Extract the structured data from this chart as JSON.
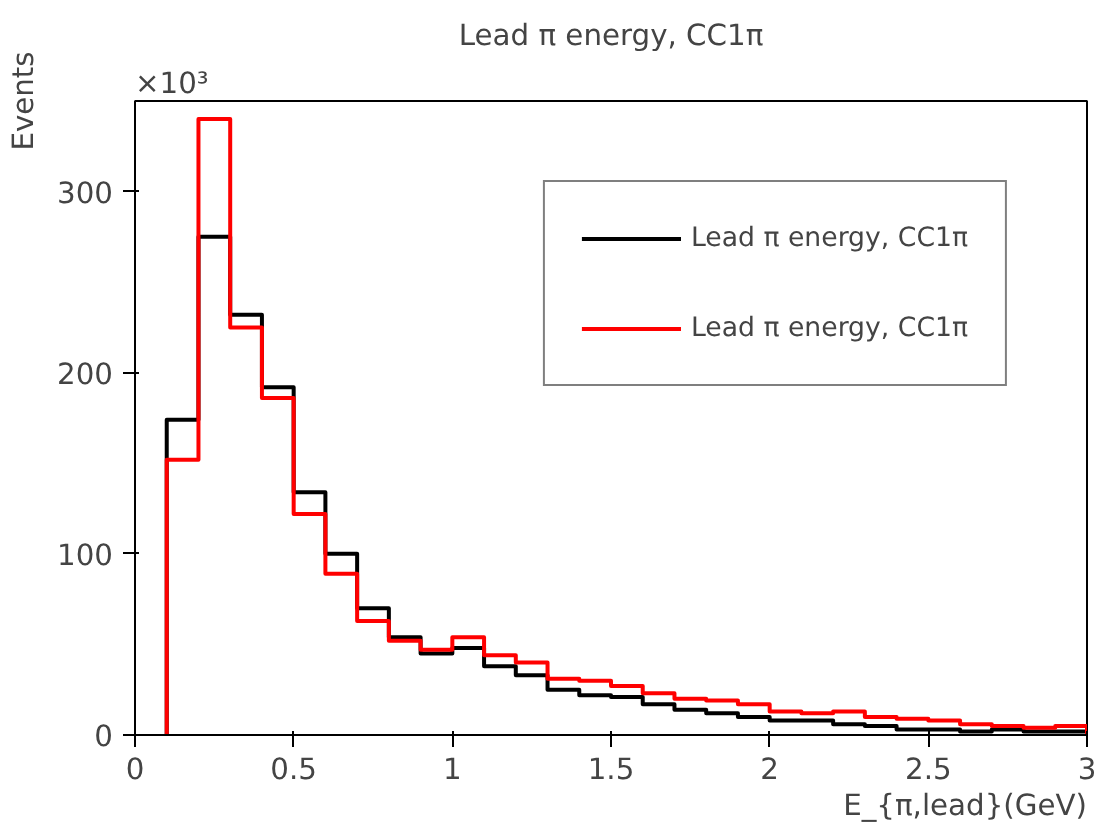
{
  "chart_data": {
    "type": "histogram",
    "title": "Lead π energy, CC1π",
    "xlabel": "E_{π,lead}(GeV)",
    "ylabel": "Events",
    "annotations": [
      "×10³"
    ],
    "bins": [
      0.1,
      0.2,
      0.3,
      0.4,
      0.5,
      0.6,
      0.7,
      0.8,
      0.9,
      1.0,
      1.1,
      1.2,
      1.3,
      1.4,
      1.5,
      1.6,
      1.7,
      1.8,
      1.9,
      2.0,
      2.1,
      2.2,
      2.3,
      2.4,
      2.5,
      2.6,
      2.7,
      2.8,
      2.9,
      3.0
    ],
    "series": [
      {
        "name": "Lead π energy, CC1π",
        "color": "#000000",
        "values": [
          174,
          275,
          232,
          192,
          134,
          100,
          70,
          54,
          45,
          48,
          38,
          33,
          25,
          22,
          21,
          17,
          14,
          12,
          10,
          8,
          8,
          6,
          5,
          3,
          3,
          2,
          3,
          2,
          2
        ]
      },
      {
        "name": "Lead π energy, CC1π",
        "color": "#ff0000",
        "values": [
          152,
          340,
          225,
          186,
          122,
          89,
          63,
          52,
          47,
          54,
          44,
          40,
          31,
          30,
          27,
          23,
          20,
          19,
          17,
          13,
          12,
          13,
          10,
          9,
          8,
          6,
          5,
          4,
          5
        ]
      }
    ],
    "xlim": [
      0,
      3
    ],
    "ylim": [
      0,
      350
    ],
    "xticks": [
      0,
      0.5,
      1,
      1.5,
      2,
      2.5,
      3
    ],
    "yticks": [
      0,
      100,
      200,
      300
    ],
    "grid": false,
    "legend": "top right"
  }
}
